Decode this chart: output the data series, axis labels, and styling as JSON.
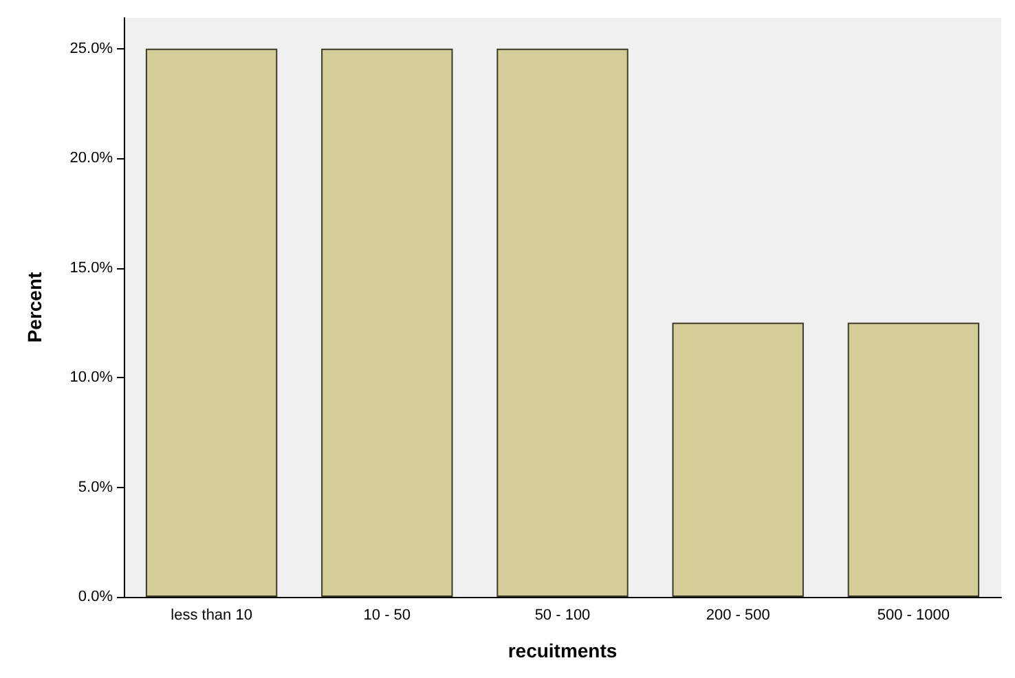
{
  "chart_data": {
    "type": "bar",
    "xlabel": "recuitments",
    "ylabel": "Percent",
    "categories": [
      "less than 10",
      "10 - 50",
      "50 - 100",
      "200 - 500",
      "500 - 1000"
    ],
    "values": [
      25,
      25,
      25,
      12.5,
      12.5
    ],
    "color": "#d3ce98",
    "ylim": [
      0,
      26.4
    ],
    "yticks": [
      {
        "value": 0,
        "label": "0.0%"
      },
      {
        "value": 5,
        "label": "5.0%"
      },
      {
        "value": 10,
        "label": "10.0%"
      },
      {
        "value": 15,
        "label": "15.0%"
      },
      {
        "value": 20,
        "label": "20.0%"
      },
      {
        "value": 25,
        "label": "25.0%"
      }
    ],
    "grid": false
  }
}
